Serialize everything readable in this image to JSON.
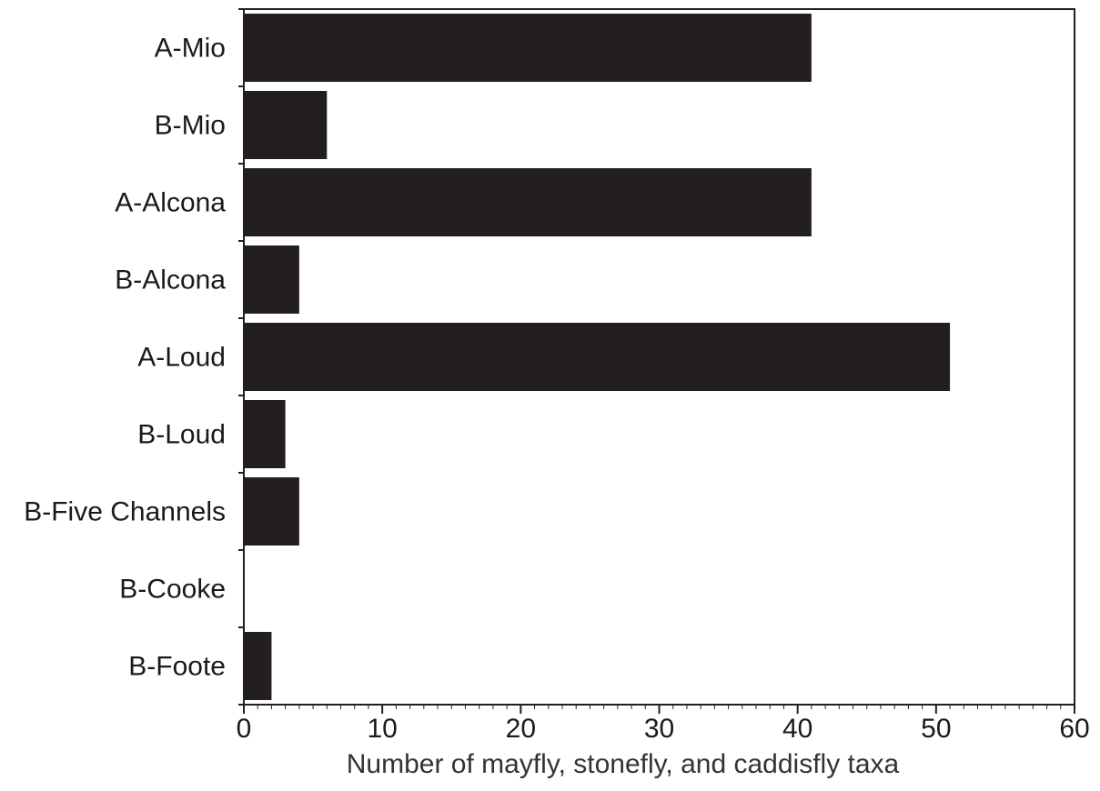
{
  "chart_data": {
    "type": "bar",
    "orientation": "horizontal",
    "title": "",
    "xlabel": "Number of mayfly, stonefly, and caddisfly taxa",
    "ylabel": "",
    "xlim": [
      0,
      60
    ],
    "x_ticks": [
      0,
      10,
      20,
      30,
      40,
      50,
      60
    ],
    "x_tick_labels": [
      "0",
      "10",
      "20",
      "30",
      "40",
      "50",
      "60"
    ],
    "minor_tick_step": 1,
    "grid": false,
    "legend": "none",
    "bar_color": "#231f20",
    "categories": [
      "A-Mio",
      "B-Mio",
      "A-Alcona",
      "B-Alcona",
      "A-Loud",
      "B-Loud",
      "B-Five Channels",
      "B-Cooke",
      "B-Foote"
    ],
    "values": [
      41,
      6,
      41,
      4,
      51,
      3,
      4,
      0,
      2
    ]
  }
}
